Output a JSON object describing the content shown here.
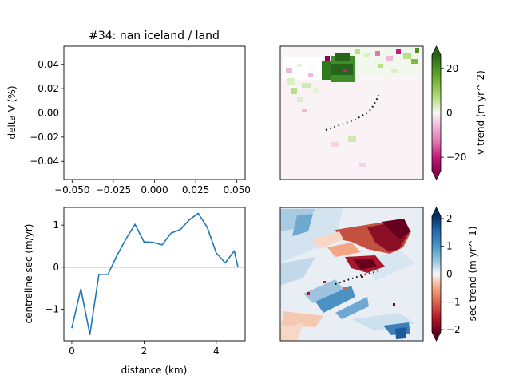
{
  "figure": {
    "top_title": "#34: nan iceland / land"
  },
  "chart_data": [
    {
      "id": "top-left",
      "type": "line",
      "title": "#34: nan iceland / land",
      "xlabel": "",
      "ylabel": "delta V (%)",
      "xlim": [
        -0.055,
        0.055
      ],
      "ylim": [
        -0.055,
        0.055
      ],
      "xticks": [
        -0.05,
        -0.025,
        0.0,
        0.025,
        0.05
      ],
      "xtick_labels": [
        "−0.050",
        "−0.025",
        "0.000",
        "0.025",
        "0.050"
      ],
      "yticks": [
        0.04,
        0.02,
        0.0,
        -0.02,
        -0.04
      ],
      "ytick_labels": [
        "0.04",
        "0.02",
        "0.00",
        "−0.02",
        "−0.04"
      ],
      "series": []
    },
    {
      "id": "bottom-left",
      "type": "line",
      "xlabel": "distance (km)",
      "ylabel": "centreline sec (m/yr)",
      "xlim": [
        -0.22,
        4.8
      ],
      "ylim": [
        -1.75,
        1.42
      ],
      "xticks": [
        0,
        2,
        4
      ],
      "xtick_labels": [
        "0",
        "2",
        "4"
      ],
      "yticks": [
        1,
        0,
        -1
      ],
      "ytick_labels": [
        "1",
        "0",
        "−1"
      ],
      "hline": 0,
      "series": [
        {
          "color": "#1f77b4",
          "x": [
            0.0,
            0.25,
            0.5,
            0.75,
            1.0,
            1.25,
            1.5,
            1.75,
            2.0,
            2.25,
            2.5,
            2.75,
            3.0,
            3.25,
            3.5,
            3.75,
            4.0,
            4.25,
            4.5,
            4.6
          ],
          "y": [
            -1.45,
            -0.52,
            -1.6,
            -0.17,
            -0.17,
            0.28,
            0.67,
            1.02,
            0.6,
            0.59,
            0.53,
            0.81,
            0.89,
            1.12,
            1.28,
            0.95,
            0.34,
            0.1,
            0.39,
            0.0
          ]
        }
      ]
    },
    {
      "id": "top-right",
      "type": "heatmap",
      "colorbar_label": "v trend (m yr^-2)",
      "colorbar_range": [
        -30,
        30
      ],
      "colorbar_ticks": [
        20,
        0,
        -20
      ],
      "colorbar_tick_labels": [
        "20",
        "0",
        "−20"
      ],
      "colormap": "PiYG",
      "colors": {
        "low": "#8e0152",
        "mid": "#f7f7f7",
        "high": "#276419"
      }
    },
    {
      "id": "bottom-right",
      "type": "heatmap",
      "colorbar_label": "sec trend (m yr^-1)",
      "colorbar_range": [
        -2.4,
        2.4
      ],
      "colorbar_ticks": [
        2,
        1,
        0,
        -1,
        -2
      ],
      "colorbar_tick_labels": [
        "2",
        "1",
        "0",
        "−1",
        "−2"
      ],
      "colormap": "RdBu",
      "colors": {
        "low": "#67001f",
        "mid": "#f7f7f7",
        "high": "#053061"
      }
    }
  ]
}
